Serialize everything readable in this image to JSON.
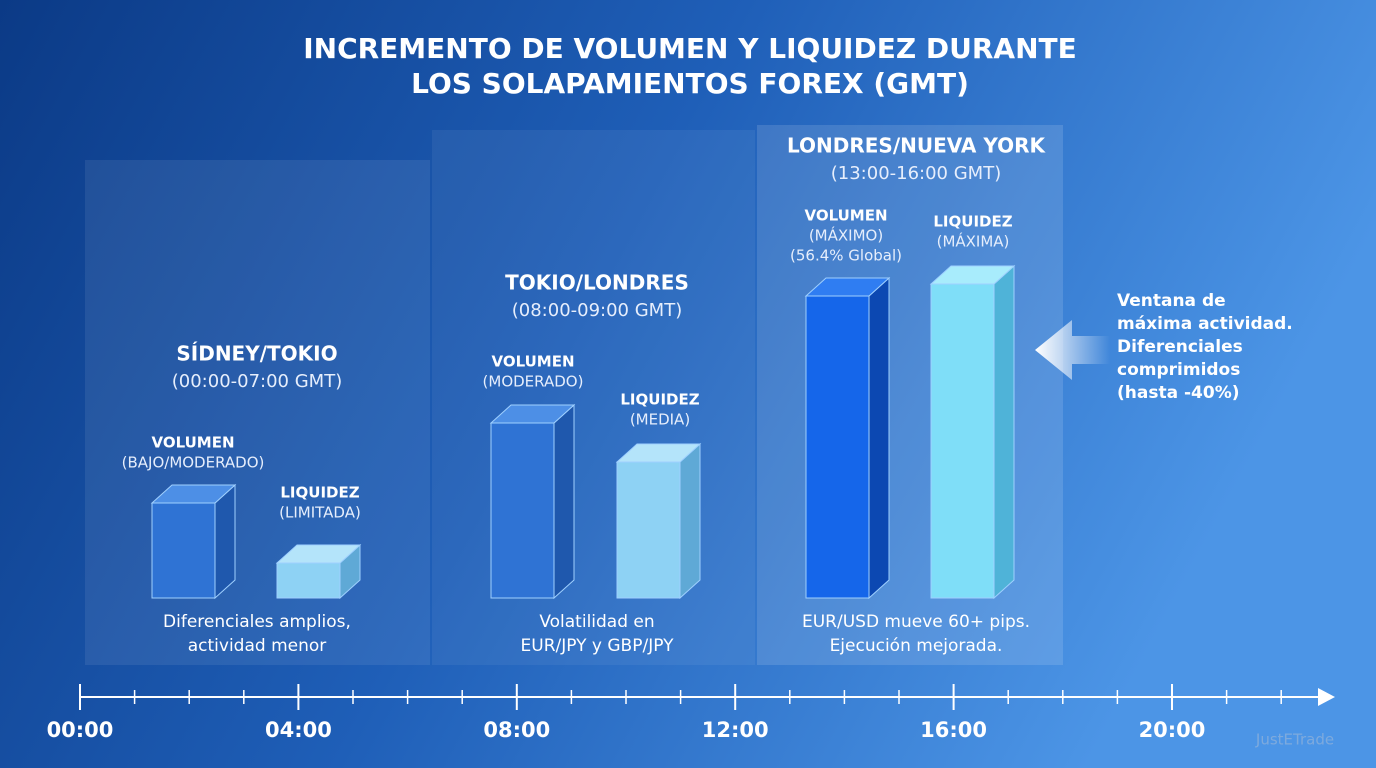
{
  "title": [
    "INCREMENTO DE VOLUMEN Y LIQUIDEZ DURANTE",
    "LOS SOLAPAMIENTOS FOREX (GMT)"
  ],
  "groups": [
    {
      "title": "SÍDNEY/TOKIO",
      "hours": "(00:00-07:00 GMT)",
      "volume": [
        "VOLUMEN",
        "(BAJO/MODERADO)"
      ],
      "liquidity": [
        "LIQUIDEZ",
        "(LIMITADA)"
      ],
      "note": [
        "Diferenciales amplios,",
        "actividad menor"
      ]
    },
    {
      "title": "TOKIO/LONDRES",
      "hours": "(08:00-09:00 GMT)",
      "volume": [
        "VOLUMEN",
        "(MODERADO)"
      ],
      "liquidity": [
        "LIQUIDEZ",
        "(MEDIA)"
      ],
      "note": [
        "Volatilidad en",
        "EUR/JPY y GBP/JPY"
      ]
    },
    {
      "title": "LONDRES/NUEVA YORK",
      "hours": "(13:00-16:00 GMT)",
      "volume": [
        "VOLUMEN",
        "(MÁXIMO)",
        "(56.4% Global)"
      ],
      "liquidity": [
        "LIQUIDEZ",
        "(MÁXIMA)"
      ],
      "note": [
        "EUR/USD mueve 60+ pips.",
        "Ejecución mejorada."
      ]
    }
  ],
  "callout": [
    "Ventana de",
    "máxima actividad.",
    "Diferenciales",
    "comprimidos",
    "(hasta -40%)"
  ],
  "timeline": [
    "00:00",
    "04:00",
    "08:00",
    "12:00",
    "16:00",
    "20:00"
  ],
  "watermark": "JustETrade"
}
